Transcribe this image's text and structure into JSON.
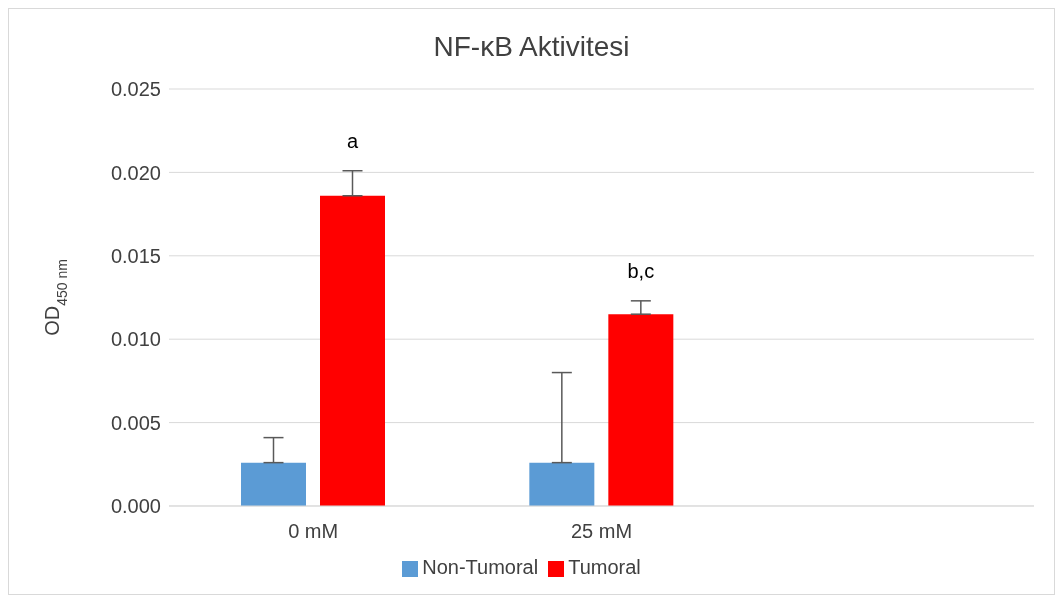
{
  "chart_data": {
    "type": "bar",
    "title": "NF-κB Aktivitesi",
    "ylabel": "OD$_{450 nm}$",
    "categories": [
      "0 mM",
      "25 mM",
      null
    ],
    "series": [
      {
        "name": "Non-Tumoral",
        "color": "#5b9bd5",
        "values": [
          0.0026,
          0.0026,
          null
        ],
        "errors": [
          [
            0.0026,
            0.0041
          ],
          [
            0.0026,
            0.008
          ],
          null
        ]
      },
      {
        "name": "Tumoral",
        "color": "#ff0000",
        "values": [
          0.0186,
          0.0115,
          null
        ],
        "errors": [
          [
            0.0186,
            0.0201
          ],
          [
            0.0115,
            0.0123
          ],
          null
        ]
      }
    ],
    "ylim": [
      0,
      0.025
    ],
    "yticks": [
      {
        "value": 0,
        "label": "0.000"
      },
      {
        "value": 0.005,
        "label": "0.005"
      },
      {
        "value": 0.01,
        "label": "0.010"
      },
      {
        "value": 0.015,
        "label": "0.015"
      },
      {
        "value": 0.02,
        "label": "0.020"
      },
      {
        "value": 0.025,
        "label": "0.025"
      }
    ],
    "grid": "y",
    "legend": "bottom",
    "annotations": [
      "a",
      "b,c"
    ]
  }
}
